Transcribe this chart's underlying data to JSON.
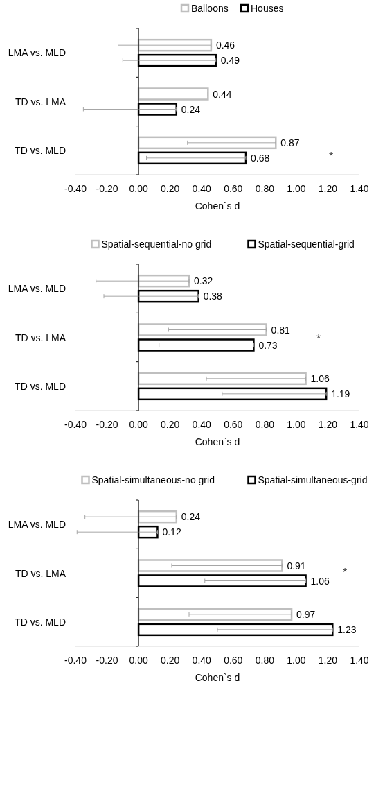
{
  "chart_data": [
    {
      "type": "bar",
      "orientation": "horizontal",
      "categories": [
        "LMA vs. MLD",
        "TD vs. LMA",
        "TD vs. MLD"
      ],
      "xlabel": "Cohen`s d",
      "xlim": [
        -0.4,
        1.4
      ],
      "xticks": [
        {
          "value": -0.4,
          "label": "-0.40"
        },
        {
          "value": -0.2,
          "label": "-0.20"
        },
        {
          "value": 0,
          "label": "0.00"
        },
        {
          "value": 0.2,
          "label": "0.20"
        },
        {
          "value": 0.4,
          "label": "0.40"
        },
        {
          "value": 0.6,
          "label": "0.60"
        },
        {
          "value": 0.8,
          "label": "0.80"
        },
        {
          "value": 1,
          "label": "1.00"
        },
        {
          "value": 1.2,
          "label": "1.20"
        },
        {
          "value": 1.4,
          "label": "1.40"
        }
      ],
      "legend": "top",
      "data_labels": true,
      "series": [
        {
          "name": "Balloons",
          "color": "#bfbfbf",
          "values": [
            0.46,
            0.44,
            0.87
          ],
          "errors": [
            [
              -0.13,
              0.46
            ],
            [
              -0.13,
              0.44
            ],
            [
              0.31,
              0.87
            ]
          ]
        },
        {
          "name": "Houses",
          "color": "#000000",
          "values": [
            0.49,
            0.24,
            0.68
          ],
          "errors": [
            [
              -0.1,
              0.49
            ],
            [
              -0.35,
              0.24
            ],
            [
              0.05,
              0.68
            ]
          ]
        }
      ],
      "annotations": [
        "*"
      ]
    },
    {
      "type": "bar",
      "orientation": "horizontal",
      "categories": [
        "LMA vs. MLD",
        "TD vs. LMA",
        "TD vs. MLD"
      ],
      "xlabel": "Cohen`s d",
      "xlim": [
        -0.4,
        1.4
      ],
      "xticks": [
        {
          "value": -0.4,
          "label": "-0.40"
        },
        {
          "value": -0.2,
          "label": "-0.20"
        },
        {
          "value": 0,
          "label": "0.00"
        },
        {
          "value": 0.2,
          "label": "0.20"
        },
        {
          "value": 0.4,
          "label": "0.40"
        },
        {
          "value": 0.6,
          "label": "0.60"
        },
        {
          "value": 0.8,
          "label": "0.80"
        },
        {
          "value": 1,
          "label": "1.00"
        },
        {
          "value": 1.2,
          "label": "1.20"
        },
        {
          "value": 1.4,
          "label": "1.40"
        }
      ],
      "legend": "top",
      "data_labels": true,
      "series": [
        {
          "name": "Spatial-sequential-no grid",
          "color": "#bfbfbf",
          "values": [
            0.32,
            0.81,
            1.06
          ],
          "errors": [
            [
              -0.27,
              0.32
            ],
            [
              0.19,
              0.81
            ],
            [
              0.43,
              1.06
            ]
          ]
        },
        {
          "name": "Spatial-sequential-grid",
          "color": "#000000",
          "values": [
            0.38,
            0.73,
            1.19
          ],
          "errors": [
            [
              -0.22,
              0.38
            ],
            [
              0.13,
              0.73
            ],
            [
              0.53,
              1.19
            ]
          ]
        }
      ],
      "annotations": [
        "*"
      ]
    },
    {
      "type": "bar",
      "orientation": "horizontal",
      "categories": [
        "LMA vs. MLD",
        "TD vs. LMA",
        "TD vs. MLD"
      ],
      "xlabel": "Cohen`s d",
      "xlim": [
        -0.4,
        1.4
      ],
      "xticks": [
        {
          "value": -0.4,
          "label": "-0.40"
        },
        {
          "value": -0.2,
          "label": "-0.20"
        },
        {
          "value": 0,
          "label": "0.00"
        },
        {
          "value": 0.2,
          "label": "0.20"
        },
        {
          "value": 0.4,
          "label": "0.40"
        },
        {
          "value": 0.6,
          "label": "0.60"
        },
        {
          "value": 0.8,
          "label": "0.80"
        },
        {
          "value": 1,
          "label": "1.00"
        },
        {
          "value": 1.2,
          "label": "1.20"
        },
        {
          "value": 1.4,
          "label": "1.40"
        }
      ],
      "legend": "top",
      "data_labels": true,
      "series": [
        {
          "name": "Spatial-simultaneous-no grid",
          "color": "#bfbfbf",
          "values": [
            0.24,
            0.91,
            0.97
          ],
          "errors": [
            [
              -0.34,
              0.24
            ],
            [
              0.21,
              0.91
            ],
            [
              0.32,
              0.97
            ]
          ]
        },
        {
          "name": "Spatial-simultaneous-grid",
          "color": "#000000",
          "values": [
            0.12,
            1.06,
            1.23
          ],
          "errors": [
            [
              -0.39,
              0.12
            ],
            [
              0.42,
              1.06
            ],
            [
              0.5,
              1.23
            ]
          ]
        }
      ],
      "annotations": [
        "*"
      ]
    }
  ]
}
